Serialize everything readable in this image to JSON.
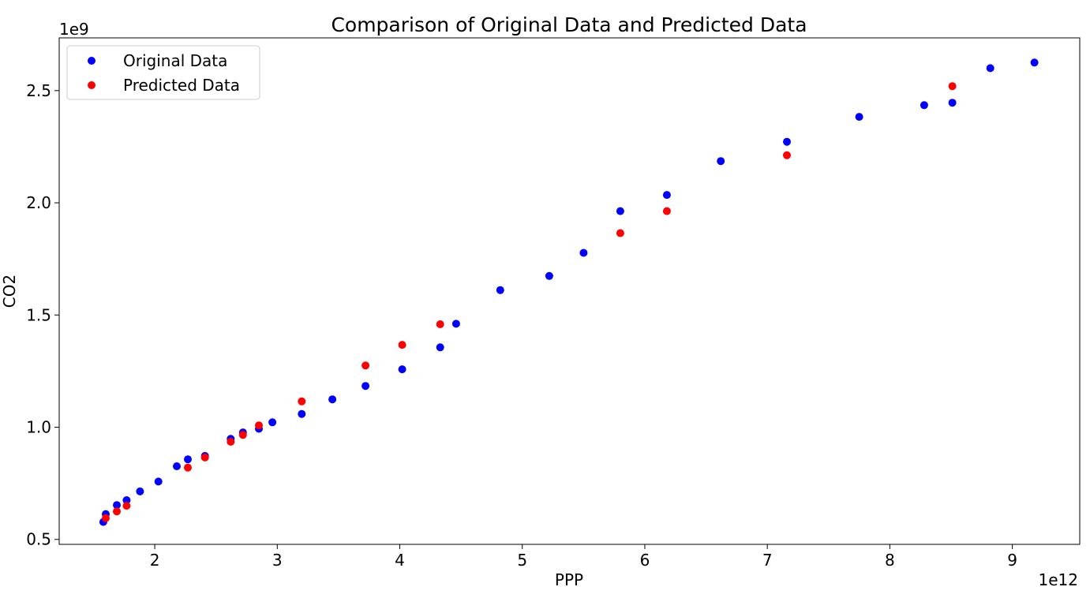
{
  "chart_data": {
    "type": "scatter",
    "title": "Comparison of Original Data and Predicted Data",
    "xlabel": "PPP",
    "ylabel": "CO2",
    "x_offset_label": "1e12",
    "y_offset_label": "1e9",
    "xlim": [
      1.22,
      9.55
    ],
    "ylim": [
      0.478,
      2.735
    ],
    "x_ticks": [
      2,
      3,
      4,
      5,
      6,
      7,
      8,
      9
    ],
    "x_tick_labels": [
      "2",
      "3",
      "4",
      "5",
      "6",
      "7",
      "8",
      "9"
    ],
    "y_ticks": [
      0.5,
      1.0,
      1.5,
      2.0,
      2.5
    ],
    "y_tick_labels": [
      "0.5",
      "1.0",
      "1.5",
      "2.0",
      "2.5"
    ],
    "grid": false,
    "legend_position": "top-left",
    "series": [
      {
        "name": "Original Data",
        "color": "#0000ff",
        "points": [
          [
            1.58,
            0.578
          ],
          [
            1.6,
            0.613
          ],
          [
            1.69,
            0.653
          ],
          [
            1.77,
            0.675
          ],
          [
            1.88,
            0.714
          ],
          [
            2.03,
            0.758
          ],
          [
            2.18,
            0.826
          ],
          [
            2.27,
            0.857
          ],
          [
            2.41,
            0.872
          ],
          [
            2.62,
            0.948
          ],
          [
            2.72,
            0.977
          ],
          [
            2.85,
            0.993
          ],
          [
            2.96,
            1.022
          ],
          [
            3.2,
            1.059
          ],
          [
            3.45,
            1.124
          ],
          [
            3.72,
            1.184
          ],
          [
            4.02,
            1.258
          ],
          [
            4.33,
            1.356
          ],
          [
            4.46,
            1.461
          ],
          [
            4.82,
            1.611
          ],
          [
            5.22,
            1.674
          ],
          [
            5.5,
            1.777
          ],
          [
            5.8,
            1.963
          ],
          [
            6.18,
            2.035
          ],
          [
            6.62,
            2.186
          ],
          [
            7.16,
            2.272
          ],
          [
            7.75,
            2.383
          ],
          [
            8.28,
            2.435
          ],
          [
            8.51,
            2.446
          ],
          [
            8.82,
            2.6
          ],
          [
            9.18,
            2.625
          ]
        ]
      },
      {
        "name": "Predicted Data",
        "color": "#ff0000",
        "points": [
          [
            1.6,
            0.595
          ],
          [
            1.69,
            0.625
          ],
          [
            1.77,
            0.65
          ],
          [
            2.27,
            0.82
          ],
          [
            2.41,
            0.865
          ],
          [
            2.62,
            0.935
          ],
          [
            2.72,
            0.966
          ],
          [
            2.85,
            1.008
          ],
          [
            3.2,
            1.115
          ],
          [
            3.72,
            1.275
          ],
          [
            4.02,
            1.367
          ],
          [
            4.33,
            1.459
          ],
          [
            5.8,
            1.865
          ],
          [
            6.18,
            1.963
          ],
          [
            7.16,
            2.212
          ],
          [
            8.51,
            2.52
          ]
        ]
      }
    ]
  }
}
